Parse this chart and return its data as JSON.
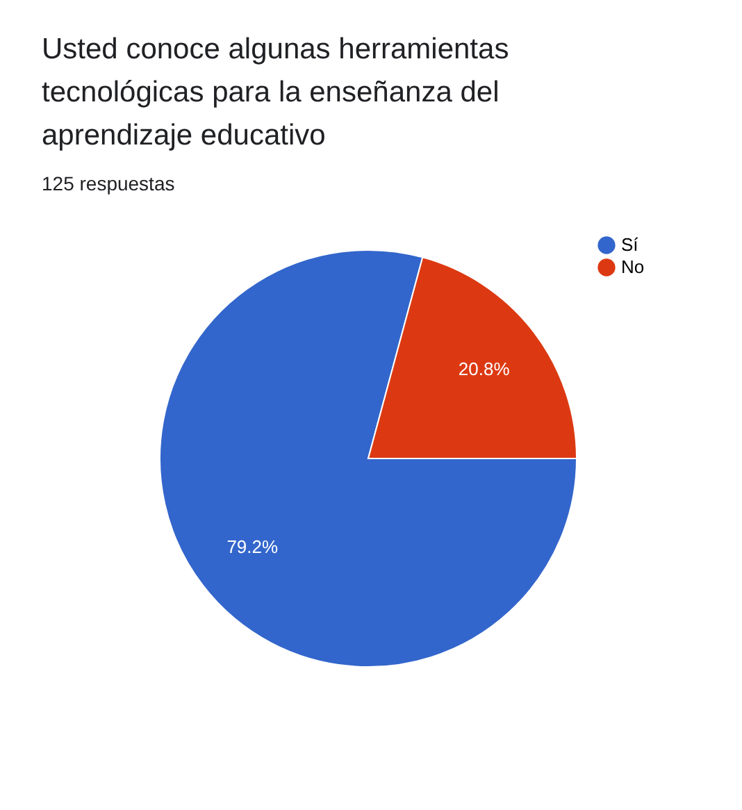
{
  "chart_data": {
    "type": "pie",
    "title": "Usted conoce algunas herramientas tecnológicas para la enseñanza del aprendizaje educativo",
    "subtitle": "125 respuestas",
    "categories": [
      "Sí",
      "No"
    ],
    "values": [
      79.2,
      20.8
    ],
    "colors": [
      "#3366cc",
      "#dc3912"
    ],
    "value_labels": [
      "79.2%",
      "20.8%"
    ],
    "legend": "top right"
  }
}
